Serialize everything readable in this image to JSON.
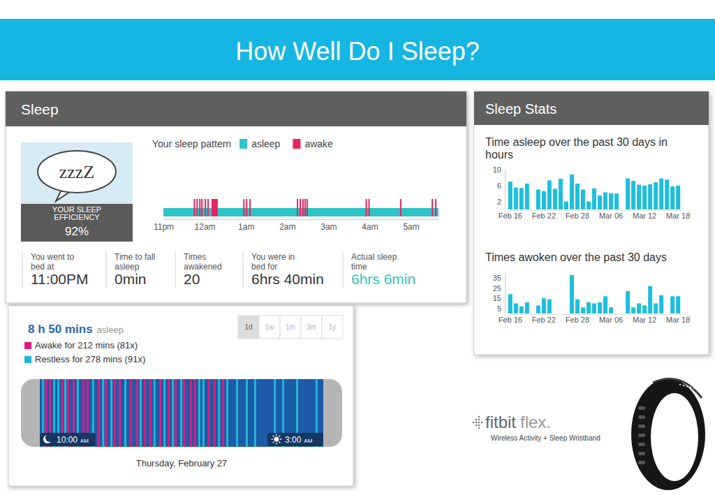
{
  "slide": {
    "title": "How Well Do I Sleep?"
  },
  "sleep_panel": {
    "title": "Sleep",
    "icon_text": "zzzZ",
    "efficiency_label": "YOUR SLEEP EFFICIENCY",
    "efficiency": "92%",
    "pattern": {
      "title": "Your sleep pattern",
      "series": [
        {
          "name": "asleep",
          "color": "#2ec4c6"
        },
        {
          "name": "awake",
          "color": "#e8245e"
        }
      ],
      "xlim": [
        0,
        400
      ],
      "xticks": [
        {
          "value": 0,
          "label": "11pm"
        },
        {
          "value": 60,
          "label": "12am"
        },
        {
          "value": 120,
          "label": "1am"
        },
        {
          "value": 180,
          "label": "2am"
        },
        {
          "value": 240,
          "label": "3am"
        },
        {
          "value": 300,
          "label": "4am"
        },
        {
          "value": 360,
          "label": "5am"
        }
      ],
      "awake_events": [
        {
          "start": 44,
          "duration": 1
        },
        {
          "start": 48,
          "duration": 1
        },
        {
          "start": 52,
          "duration": 1
        },
        {
          "start": 55,
          "duration": 1
        },
        {
          "start": 60,
          "duration": 1
        },
        {
          "start": 64,
          "duration": 1
        },
        {
          "start": 70,
          "duration": 9
        },
        {
          "start": 116,
          "duration": 1
        },
        {
          "start": 120,
          "duration": 1
        },
        {
          "start": 125,
          "duration": 1
        },
        {
          "start": 194,
          "duration": 1
        },
        {
          "start": 198,
          "duration": 1
        },
        {
          "start": 202,
          "duration": 1
        },
        {
          "start": 205,
          "duration": 1
        },
        {
          "start": 208,
          "duration": 1
        },
        {
          "start": 294,
          "duration": 1
        },
        {
          "start": 298,
          "duration": 1
        },
        {
          "start": 344,
          "duration": 1
        },
        {
          "start": 390,
          "duration": 1
        },
        {
          "start": 395,
          "duration": 1
        }
      ]
    },
    "stats": [
      {
        "label": "You went to bed at",
        "value": "11:00PM"
      },
      {
        "label": "Time to fall asleep",
        "value": "0min"
      },
      {
        "label": "Times awakened",
        "value": "20"
      },
      {
        "label": "You were in bed for",
        "value": "6hrs 40min"
      },
      {
        "label": "Actual sleep time",
        "value": "6hrs 6min"
      }
    ]
  },
  "stats_panel": {
    "title": "Sleep Stats"
  },
  "chart_data": [
    {
      "type": "bar",
      "title": "Time asleep over the past 30 days in hours",
      "categories": [
        "Feb 16",
        null,
        null,
        null,
        null,
        null,
        "Feb 22",
        null,
        null,
        null,
        null,
        null,
        "Feb 28",
        null,
        null,
        null,
        null,
        null,
        "Mar 06",
        null,
        null,
        null,
        null,
        null,
        "Mar 12",
        null,
        null,
        null,
        null,
        null,
        "Mar 18"
      ],
      "values": [
        7,
        5.5,
        5.4,
        6.5,
        null,
        5,
        4.6,
        7.3,
        5.2,
        7.7,
        2,
        8.8,
        6.5,
        5,
        2,
        5.3,
        3.5,
        4.3,
        4.1,
        4,
        null,
        7.8,
        7.2,
        6.2,
        6,
        6.3,
        6.8,
        7.8,
        7.5,
        5.8,
        6
      ],
      "color": "#1dbfdc",
      "ylim": [
        0,
        10
      ],
      "yticks": [
        2,
        6,
        10
      ],
      "grid": false
    },
    {
      "type": "bar",
      "title": "Times awoken over the past 30 days",
      "categories": [
        "Feb 16",
        null,
        null,
        null,
        null,
        null,
        "Feb 22",
        null,
        null,
        null,
        null,
        null,
        "Feb 28",
        null,
        null,
        null,
        null,
        null,
        "Mar 06",
        null,
        null,
        null,
        null,
        null,
        "Mar 12",
        null,
        null,
        null,
        null,
        null,
        "Mar 18"
      ],
      "values": [
        19,
        10,
        7,
        11,
        null,
        8,
        15,
        14,
        null,
        null,
        null,
        38,
        14,
        6,
        11,
        10,
        11,
        17,
        6,
        null,
        null,
        22,
        6,
        10,
        8,
        27,
        10,
        18,
        null,
        17,
        17
      ],
      "color": "#1dbfdc",
      "ylim": [
        0,
        40
      ],
      "yticks": [
        5,
        15,
        25,
        35
      ],
      "grid": false
    }
  ],
  "restless_panel": {
    "asleep_total": "8 h 50 mins",
    "asleep_label": "asleep",
    "tabs": [
      "1d",
      "1w",
      "1m",
      "3m",
      "1y"
    ],
    "selected_tab": 0,
    "key_items": [
      {
        "name": "Awake for 212 mins (81x)",
        "color": "#e2197c"
      },
      {
        "name": "Restless for 278 mins (91x)",
        "color": "#22b6d6"
      }
    ],
    "xlim": [
      0,
      1020
    ],
    "awake_stripes": [
      18,
      33,
      78,
      98,
      118,
      153,
      168,
      208,
      234,
      266,
      284,
      324,
      347,
      374,
      394,
      430,
      460,
      485,
      515,
      540,
      555,
      605,
      625,
      656
    ],
    "restless_stripes": [
      8,
      48,
      63,
      88,
      133,
      188,
      224,
      254,
      304,
      359,
      409,
      445,
      475,
      505,
      570,
      585,
      641,
      671,
      706,
      741,
      771,
      842,
      872,
      922,
      992
    ],
    "start_time": "10:00",
    "start_period": "AM",
    "end_time": "3:00",
    "end_period": "AM",
    "date": "Thursday, February 27"
  },
  "brand": {
    "name": "fitbit",
    "model": "flex.",
    "tagline": "Wireless Activity + Sleep Wristband"
  }
}
